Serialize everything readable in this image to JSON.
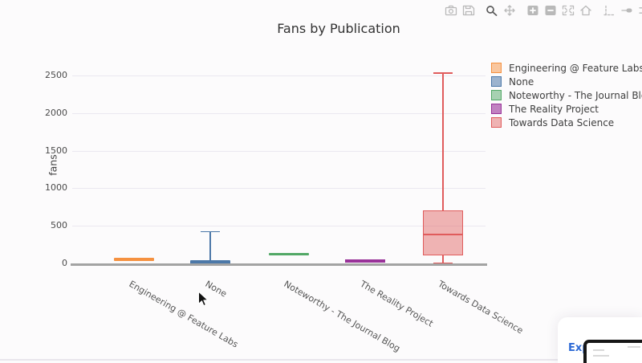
{
  "window": {
    "background": "#fcfbfc"
  },
  "toolbar": {
    "icon_color": "#b9b9b9",
    "active_icon_color": "#5a5a5a",
    "logo_color": "#3f8fdf",
    "buttons": [
      {
        "icon": "camera-icon",
        "name": "download-plot"
      },
      {
        "icon": "save-icon",
        "name": "save"
      },
      {
        "icon": "magnifier-icon",
        "name": "zoom",
        "active": true
      },
      {
        "icon": "pan-icon",
        "name": "pan"
      },
      {
        "icon": "zoom-in-icon",
        "name": "zoom-in"
      },
      {
        "icon": "zoom-out-icon",
        "name": "zoom-out"
      },
      {
        "icon": "autoscale-icon",
        "name": "autoscale"
      },
      {
        "icon": "home-icon",
        "name": "reset-axes"
      },
      {
        "icon": "spikelines-icon",
        "name": "toggle-spikelines"
      },
      {
        "icon": "hover-closest-icon",
        "name": "hover-closest"
      },
      {
        "icon": "hover-compare-icon",
        "name": "hover-compare"
      },
      {
        "icon": "plotly-logo-icon",
        "name": "plotly-logo"
      }
    ]
  },
  "chart_data": {
    "type": "box",
    "title": "Fans by Publication",
    "xlabel": "",
    "ylabel": "fans",
    "yticks": [
      0,
      500,
      1000,
      1500,
      2000,
      2500
    ],
    "ylim": [
      -80,
      2700
    ],
    "grid": true,
    "legend_position": "right",
    "axis_color": "#a3a3a3",
    "grid_color": "#ebe8f0",
    "tick_color": "#4a4a4a",
    "categories": [
      "Engineering @ Feature Labs",
      "None",
      "Noteworthy - The Journal Blog",
      "The Reality Project",
      "Towards Data Science"
    ],
    "series": [
      {
        "name": "Engineering @ Feature Labs",
        "line_color": "#f59140",
        "fill_color": "rgba(245,145,64,0.5)",
        "min": 45,
        "q1": 45,
        "median": 55,
        "q3": 65,
        "max": 65
      },
      {
        "name": "None",
        "line_color": "#4c78a8",
        "fill_color": "rgba(76,120,168,0.55)",
        "min": 0,
        "q1": 0,
        "median": 10,
        "q3": 30,
        "max": 430
      },
      {
        "name": "Noteworthy - The Journal Blog",
        "line_color": "#52a866",
        "fill_color": "rgba(82,168,102,0.5)",
        "min": 123,
        "q1": 123,
        "median": 123,
        "q3": 123,
        "max": 123
      },
      {
        "name": "The Reality Project",
        "line_color": "#993299",
        "fill_color": "rgba(153,50,153,0.6)",
        "min": 11,
        "q1": 11,
        "median": 30,
        "q3": 53,
        "max": 53
      },
      {
        "name": "Towards Data Science",
        "line_color": "#e05c5c",
        "fill_color": "rgba(224,92,92,0.45)",
        "min": 10,
        "q1": 110,
        "median": 380,
        "q3": 700,
        "max": 2540
      }
    ]
  },
  "overlay": {
    "link_text": "Exp"
  }
}
